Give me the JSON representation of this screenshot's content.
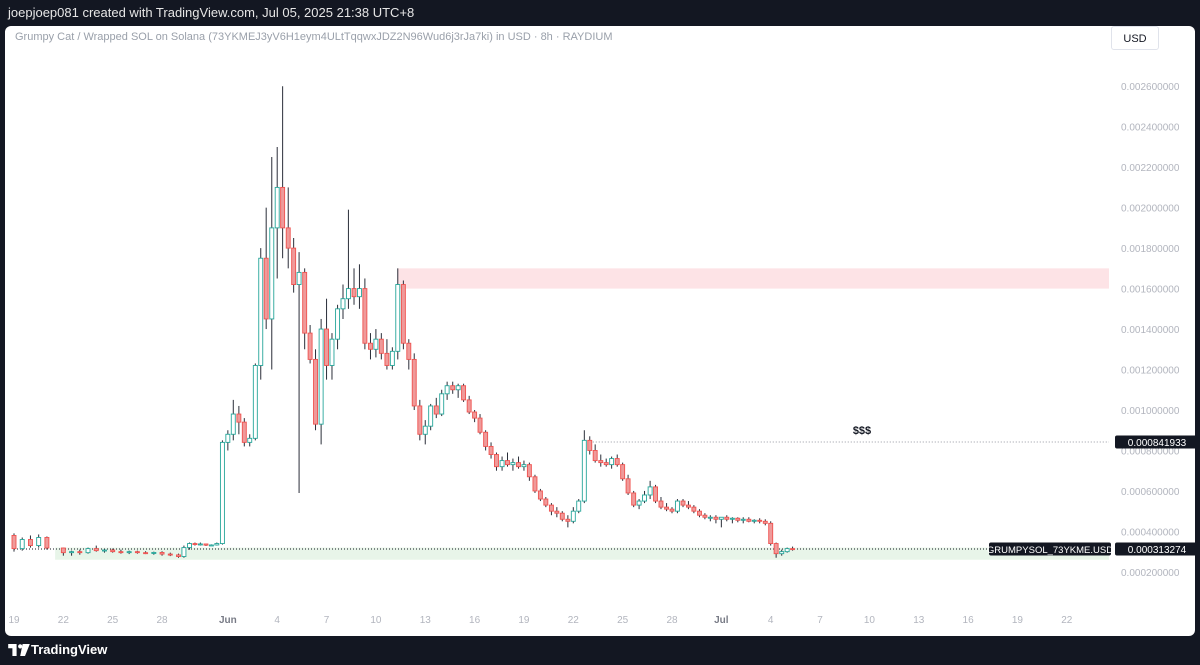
{
  "header": {
    "caption": "joepjoep081 created with TradingView.com, Jul 05, 2025 21:38 UTC+8"
  },
  "footer": {
    "brand": "TradingView"
  },
  "toolbar": {
    "currency_label": "USD"
  },
  "colors": {
    "up": "#26a69a",
    "down": "#ef5350",
    "upFill": "#ffffff",
    "downFill": "#ef9a9a",
    "supplyZone": "#fde3e6",
    "demandZone": "#e8f5e9",
    "axisText": "#b2b5be",
    "grid": "#f0f3fa"
  },
  "chart_data": {
    "type": "candlestick",
    "title": "Grumpy Cat / Wrapped SOL on Solana (73YKMEJ3yV6H1eym4ULtTqqwxJDZ2N96Wud6j3rJa7ki) in USD · 8h · RAYDIUM",
    "interval": "8h",
    "exchange": "RAYDIUM",
    "y_axis": {
      "min": 0.00015,
      "max": 0.0027,
      "ticks": [
        "0.000200000",
        "0.000400000",
        "0.000600000",
        "0.000800000",
        "0.001000000",
        "0.001200000",
        "0.001400000",
        "0.001600000",
        "0.001800000",
        "0.002000000",
        "0.002200000",
        "0.002400000",
        "0.002600000"
      ]
    },
    "x_axis": {
      "ticks": [
        {
          "label": "19",
          "day": 0
        },
        {
          "label": "22",
          "day": 3
        },
        {
          "label": "25",
          "day": 6
        },
        {
          "label": "28",
          "day": 9
        },
        {
          "label": "Jun",
          "day": 13,
          "bold": true
        },
        {
          "label": "4",
          "day": 16
        },
        {
          "label": "7",
          "day": 19
        },
        {
          "label": "10",
          "day": 22
        },
        {
          "label": "13",
          "day": 25
        },
        {
          "label": "16",
          "day": 28
        },
        {
          "label": "19",
          "day": 31
        },
        {
          "label": "22",
          "day": 34
        },
        {
          "label": "25",
          "day": 37
        },
        {
          "label": "28",
          "day": 40
        },
        {
          "label": "Jul",
          "day": 43,
          "bold": true
        },
        {
          "label": "4",
          "day": 46
        },
        {
          "label": "7",
          "day": 49
        },
        {
          "label": "10",
          "day": 52
        },
        {
          "label": "13",
          "day": 55
        },
        {
          "label": "16",
          "day": 58
        },
        {
          "label": "19",
          "day": 61
        },
        {
          "label": "22",
          "day": 64
        }
      ]
    },
    "candles": [
      {
        "d": 0,
        "o": 0.00038,
        "h": 0.00039,
        "l": 0.0003,
        "c": 0.000315
      },
      {
        "d": 0.5,
        "o": 0.000315,
        "h": 0.00037,
        "l": 0.000305,
        "c": 0.00036
      },
      {
        "d": 1,
        "o": 0.00036,
        "h": 0.00038,
        "l": 0.00032,
        "c": 0.00033
      },
      {
        "d": 1.5,
        "o": 0.00033,
        "h": 0.000385,
        "l": 0.00032,
        "c": 0.00037
      },
      {
        "d": 2,
        "o": 0.00037,
        "h": 0.000375,
        "l": 0.00031,
        "c": 0.000318
      },
      {
        "d": 3,
        "o": 0.000318,
        "h": 0.00032,
        "l": 0.00028,
        "c": 0.000295
      },
      {
        "d": 3.5,
        "o": 0.000295,
        "h": 0.000305,
        "l": 0.00028,
        "c": 0.0003
      },
      {
        "d": 4,
        "o": 0.0003,
        "h": 0.00031,
        "l": 0.000285,
        "c": 0.000295
      },
      {
        "d": 4.5,
        "o": 0.000295,
        "h": 0.00032,
        "l": 0.00029,
        "c": 0.000315
      },
      {
        "d": 5,
        "o": 0.000315,
        "h": 0.00033,
        "l": 0.0003,
        "c": 0.000305
      },
      {
        "d": 5.5,
        "o": 0.000305,
        "h": 0.000312,
        "l": 0.000295,
        "c": 0.000308
      },
      {
        "d": 6,
        "o": 0.000308,
        "h": 0.000315,
        "l": 0.000295,
        "c": 0.0003
      },
      {
        "d": 6.5,
        "o": 0.0003,
        "h": 0.00031,
        "l": 0.00029,
        "c": 0.000296
      },
      {
        "d": 7,
        "o": 0.000296,
        "h": 0.000305,
        "l": 0.000288,
        "c": 0.0003
      },
      {
        "d": 7.5,
        "o": 0.0003,
        "h": 0.000305,
        "l": 0.00029,
        "c": 0.000295
      },
      {
        "d": 8,
        "o": 0.000295,
        "h": 0.000302,
        "l": 0.000288,
        "c": 0.000292
      },
      {
        "d": 8.5,
        "o": 0.000292,
        "h": 0.0003,
        "l": 0.000285,
        "c": 0.000296
      },
      {
        "d": 9,
        "o": 0.000296,
        "h": 0.000302,
        "l": 0.00028,
        "c": 0.000288
      },
      {
        "d": 9.5,
        "o": 0.000288,
        "h": 0.000295,
        "l": 0.000278,
        "c": 0.000284
      },
      {
        "d": 10,
        "o": 0.000284,
        "h": 0.00029,
        "l": 0.00027,
        "c": 0.000276
      },
      {
        "d": 10.33,
        "o": 0.000276,
        "h": 0.00033,
        "l": 0.00027,
        "c": 0.00032
      },
      {
        "d": 10.67,
        "o": 0.00032,
        "h": 0.000345,
        "l": 0.00031,
        "c": 0.00034
      },
      {
        "d": 11,
        "o": 0.00034,
        "h": 0.000345,
        "l": 0.00033,
        "c": 0.000335
      },
      {
        "d": 11.33,
        "o": 0.000335,
        "h": 0.000345,
        "l": 0.00033,
        "c": 0.000338
      },
      {
        "d": 11.67,
        "o": 0.000338,
        "h": 0.00034,
        "l": 0.000328,
        "c": 0.000332
      },
      {
        "d": 12,
        "o": 0.000332,
        "h": 0.000336,
        "l": 0.000328,
        "c": 0.000333
      },
      {
        "d": 12.33,
        "o": 0.000333,
        "h": 0.000345,
        "l": 0.00033,
        "c": 0.00034
      },
      {
        "d": 12.67,
        "o": 0.00034,
        "h": 0.00085,
        "l": 0.000335,
        "c": 0.00084
      },
      {
        "d": 13,
        "o": 0.00084,
        "h": 0.0009,
        "l": 0.0008,
        "c": 0.00088
      },
      {
        "d": 13.33,
        "o": 0.00088,
        "h": 0.00105,
        "l": 0.00085,
        "c": 0.00098
      },
      {
        "d": 13.67,
        "o": 0.00098,
        "h": 0.00102,
        "l": 0.00088,
        "c": 0.00094
      },
      {
        "d": 14,
        "o": 0.00094,
        "h": 0.00096,
        "l": 0.00082,
        "c": 0.00084
      },
      {
        "d": 14.33,
        "o": 0.00084,
        "h": 0.00088,
        "l": 0.00082,
        "c": 0.00086
      },
      {
        "d": 14.67,
        "o": 0.00086,
        "h": 0.00123,
        "l": 0.00085,
        "c": 0.00122
      },
      {
        "d": 15,
        "o": 0.00122,
        "h": 0.0018,
        "l": 0.00115,
        "c": 0.00175
      },
      {
        "d": 15.33,
        "o": 0.00175,
        "h": 0.002,
        "l": 0.0014,
        "c": 0.00145
      },
      {
        "d": 15.67,
        "o": 0.00145,
        "h": 0.00225,
        "l": 0.0012,
        "c": 0.0019
      },
      {
        "d": 16,
        "o": 0.0019,
        "h": 0.0023,
        "l": 0.00165,
        "c": 0.0021
      },
      {
        "d": 16.33,
        "o": 0.0021,
        "h": 0.0026,
        "l": 0.00175,
        "c": 0.0019
      },
      {
        "d": 16.67,
        "o": 0.0019,
        "h": 0.0021,
        "l": 0.0017,
        "c": 0.0018
      },
      {
        "d": 17,
        "o": 0.0018,
        "h": 0.00185,
        "l": 0.00158,
        "c": 0.00162
      },
      {
        "d": 17.33,
        "o": 0.00162,
        "h": 0.00178,
        "l": 0.00059,
        "c": 0.00168
      },
      {
        "d": 17.67,
        "o": 0.00168,
        "h": 0.0017,
        "l": 0.0013,
        "c": 0.00138
      },
      {
        "d": 18,
        "o": 0.00138,
        "h": 0.00142,
        "l": 0.00123,
        "c": 0.00125
      },
      {
        "d": 18.33,
        "o": 0.00125,
        "h": 0.0013,
        "l": 0.0009,
        "c": 0.00093
      },
      {
        "d": 18.67,
        "o": 0.00093,
        "h": 0.00145,
        "l": 0.00083,
        "c": 0.0014
      },
      {
        "d": 19,
        "o": 0.0014,
        "h": 0.00155,
        "l": 0.00115,
        "c": 0.00122
      },
      {
        "d": 19.33,
        "o": 0.00122,
        "h": 0.00138,
        "l": 0.00115,
        "c": 0.00135
      },
      {
        "d": 19.67,
        "o": 0.00135,
        "h": 0.00152,
        "l": 0.0013,
        "c": 0.0015
      },
      {
        "d": 20,
        "o": 0.0015,
        "h": 0.00162,
        "l": 0.00145,
        "c": 0.00155
      },
      {
        "d": 20.33,
        "o": 0.00155,
        "h": 0.00199,
        "l": 0.0015,
        "c": 0.0016
      },
      {
        "d": 20.67,
        "o": 0.0016,
        "h": 0.0017,
        "l": 0.00152,
        "c": 0.00156
      },
      {
        "d": 21,
        "o": 0.00156,
        "h": 0.00172,
        "l": 0.0015,
        "c": 0.0016
      },
      {
        "d": 21.33,
        "o": 0.0016,
        "h": 0.00165,
        "l": 0.0013,
        "c": 0.00133
      },
      {
        "d": 21.67,
        "o": 0.00133,
        "h": 0.00138,
        "l": 0.00125,
        "c": 0.0013
      },
      {
        "d": 22,
        "o": 0.0013,
        "h": 0.0014,
        "l": 0.00126,
        "c": 0.00135
      },
      {
        "d": 22.33,
        "o": 0.00135,
        "h": 0.00138,
        "l": 0.00125,
        "c": 0.00128
      },
      {
        "d": 22.67,
        "o": 0.00128,
        "h": 0.00135,
        "l": 0.0012,
        "c": 0.00122
      },
      {
        "d": 23,
        "o": 0.00122,
        "h": 0.00131,
        "l": 0.0012,
        "c": 0.00129
      },
      {
        "d": 23.33,
        "o": 0.00129,
        "h": 0.0017,
        "l": 0.00125,
        "c": 0.00162
      },
      {
        "d": 23.67,
        "o": 0.00162,
        "h": 0.00164,
        "l": 0.0013,
        "c": 0.00133
      },
      {
        "d": 24,
        "o": 0.00133,
        "h": 0.00135,
        "l": 0.0012,
        "c": 0.00125
      },
      {
        "d": 24.33,
        "o": 0.00125,
        "h": 0.00128,
        "l": 0.001,
        "c": 0.00102
      },
      {
        "d": 24.67,
        "o": 0.00102,
        "h": 0.00105,
        "l": 0.00085,
        "c": 0.00088
      },
      {
        "d": 25,
        "o": 0.00088,
        "h": 0.00095,
        "l": 0.00083,
        "c": 0.00092
      },
      {
        "d": 25.33,
        "o": 0.00092,
        "h": 0.00103,
        "l": 0.0009,
        "c": 0.00102
      },
      {
        "d": 25.67,
        "o": 0.00102,
        "h": 0.00106,
        "l": 0.00096,
        "c": 0.00098
      },
      {
        "d": 26,
        "o": 0.00098,
        "h": 0.0011,
        "l": 0.00097,
        "c": 0.00108
      },
      {
        "d": 26.33,
        "o": 0.00108,
        "h": 0.00114,
        "l": 0.00105,
        "c": 0.00112
      },
      {
        "d": 26.67,
        "o": 0.00112,
        "h": 0.00114,
        "l": 0.00108,
        "c": 0.0011
      },
      {
        "d": 27,
        "o": 0.0011,
        "h": 0.00113,
        "l": 0.00106,
        "c": 0.00112
      },
      {
        "d": 27.33,
        "o": 0.00112,
        "h": 0.00113,
        "l": 0.00104,
        "c": 0.00105
      },
      {
        "d": 27.67,
        "o": 0.00105,
        "h": 0.00107,
        "l": 0.00098,
        "c": 0.00099
      },
      {
        "d": 28,
        "o": 0.00099,
        "h": 0.001,
        "l": 0.00094,
        "c": 0.00096
      },
      {
        "d": 28.33,
        "o": 0.00096,
        "h": 0.00098,
        "l": 0.00088,
        "c": 0.00089
      },
      {
        "d": 28.67,
        "o": 0.00089,
        "h": 0.0009,
        "l": 0.0008,
        "c": 0.00082
      },
      {
        "d": 29,
        "o": 0.00082,
        "h": 0.00084,
        "l": 0.00076,
        "c": 0.00078
      },
      {
        "d": 29.33,
        "o": 0.00078,
        "h": 0.00079,
        "l": 0.0007,
        "c": 0.00072
      },
      {
        "d": 29.67,
        "o": 0.00072,
        "h": 0.00077,
        "l": 0.0007,
        "c": 0.00075
      },
      {
        "d": 30,
        "o": 0.00075,
        "h": 0.00079,
        "l": 0.00072,
        "c": 0.00073
      },
      {
        "d": 30.33,
        "o": 0.00073,
        "h": 0.00076,
        "l": 0.0007,
        "c": 0.00074
      },
      {
        "d": 30.67,
        "o": 0.00074,
        "h": 0.00077,
        "l": 0.00071,
        "c": 0.00072
      },
      {
        "d": 31,
        "o": 0.00072,
        "h": 0.00075,
        "l": 0.0007,
        "c": 0.00073
      },
      {
        "d": 31.33,
        "o": 0.00073,
        "h": 0.00074,
        "l": 0.00065,
        "c": 0.00067
      },
      {
        "d": 31.67,
        "o": 0.00067,
        "h": 0.00068,
        "l": 0.00059,
        "c": 0.0006
      },
      {
        "d": 32,
        "o": 0.0006,
        "h": 0.00061,
        "l": 0.00055,
        "c": 0.00056
      },
      {
        "d": 32.33,
        "o": 0.00056,
        "h": 0.00057,
        "l": 0.00052,
        "c": 0.00053
      },
      {
        "d": 32.67,
        "o": 0.00053,
        "h": 0.00054,
        "l": 0.00048,
        "c": 0.0005
      },
      {
        "d": 33,
        "o": 0.0005,
        "h": 0.00052,
        "l": 0.00047,
        "c": 0.00049
      },
      {
        "d": 33.33,
        "o": 0.00049,
        "h": 0.0005,
        "l": 0.00045,
        "c": 0.00046
      },
      {
        "d": 33.67,
        "o": 0.00046,
        "h": 0.00048,
        "l": 0.00042,
        "c": 0.00045
      },
      {
        "d": 34,
        "o": 0.00045,
        "h": 0.00052,
        "l": 0.00044,
        "c": 0.0005
      },
      {
        "d": 34.33,
        "o": 0.0005,
        "h": 0.00056,
        "l": 0.00049,
        "c": 0.00055
      },
      {
        "d": 34.67,
        "o": 0.00055,
        "h": 0.0009,
        "l": 0.00054,
        "c": 0.00085
      },
      {
        "d": 35,
        "o": 0.00085,
        "h": 0.00087,
        "l": 0.00078,
        "c": 0.0008
      },
      {
        "d": 35.33,
        "o": 0.0008,
        "h": 0.00083,
        "l": 0.00074,
        "c": 0.00075
      },
      {
        "d": 35.67,
        "o": 0.00075,
        "h": 0.00078,
        "l": 0.00072,
        "c": 0.00074
      },
      {
        "d": 36,
        "o": 0.00074,
        "h": 0.00076,
        "l": 0.00072,
        "c": 0.00073
      },
      {
        "d": 36.33,
        "o": 0.00073,
        "h": 0.00077,
        "l": 0.00071,
        "c": 0.00076
      },
      {
        "d": 36.67,
        "o": 0.00076,
        "h": 0.00078,
        "l": 0.00072,
        "c": 0.00073
      },
      {
        "d": 37,
        "o": 0.00073,
        "h": 0.00074,
        "l": 0.00065,
        "c": 0.00066
      },
      {
        "d": 37.33,
        "o": 0.00066,
        "h": 0.00068,
        "l": 0.00058,
        "c": 0.00059
      },
      {
        "d": 37.67,
        "o": 0.00059,
        "h": 0.0006,
        "l": 0.00052,
        "c": 0.00053
      },
      {
        "d": 38,
        "o": 0.00053,
        "h": 0.00056,
        "l": 0.00051,
        "c": 0.00055
      },
      {
        "d": 38.33,
        "o": 0.00055,
        "h": 0.0006,
        "l": 0.00054,
        "c": 0.00058
      },
      {
        "d": 38.67,
        "o": 0.00058,
        "h": 0.00065,
        "l": 0.00056,
        "c": 0.00062
      },
      {
        "d": 39,
        "o": 0.00062,
        "h": 0.00063,
        "l": 0.00054,
        "c": 0.00055
      },
      {
        "d": 39.33,
        "o": 0.00055,
        "h": 0.00057,
        "l": 0.00051,
        "c": 0.00052
      },
      {
        "d": 39.67,
        "o": 0.00052,
        "h": 0.00054,
        "l": 0.0005,
        "c": 0.00051
      },
      {
        "d": 40,
        "o": 0.00051,
        "h": 0.00052,
        "l": 0.00049,
        "c": 0.0005
      },
      {
        "d": 40.33,
        "o": 0.0005,
        "h": 0.00056,
        "l": 0.00049,
        "c": 0.00055
      },
      {
        "d": 40.67,
        "o": 0.00055,
        "h": 0.00056,
        "l": 0.00052,
        "c": 0.00053
      },
      {
        "d": 41,
        "o": 0.00053,
        "h": 0.00055,
        "l": 0.00051,
        "c": 0.00052
      },
      {
        "d": 41.33,
        "o": 0.00052,
        "h": 0.00053,
        "l": 0.00049,
        "c": 0.0005
      },
      {
        "d": 41.67,
        "o": 0.0005,
        "h": 0.00051,
        "l": 0.00047,
        "c": 0.00048
      },
      {
        "d": 42,
        "o": 0.00048,
        "h": 0.00049,
        "l": 0.00046,
        "c": 0.00047
      },
      {
        "d": 42.33,
        "o": 0.00047,
        "h": 0.00048,
        "l": 0.00045,
        "c": 0.00047
      },
      {
        "d": 42.67,
        "o": 0.00047,
        "h": 0.00048,
        "l": 0.00044,
        "c": 0.00046
      },
      {
        "d": 43,
        "o": 0.00046,
        "h": 0.00047,
        "l": 0.00042,
        "c": 0.00047
      },
      {
        "d": 43.33,
        "o": 0.00047,
        "h": 0.00048,
        "l": 0.00045,
        "c": 0.00046
      },
      {
        "d": 43.67,
        "o": 0.00046,
        "h": 0.00047,
        "l": 0.00044,
        "c": 0.000465
      },
      {
        "d": 44,
        "o": 0.000465,
        "h": 0.00047,
        "l": 0.000445,
        "c": 0.000455
      },
      {
        "d": 44.33,
        "o": 0.000455,
        "h": 0.00047,
        "l": 0.00044,
        "c": 0.00046
      },
      {
        "d": 44.67,
        "o": 0.00046,
        "h": 0.00047,
        "l": 0.000445,
        "c": 0.00045
      },
      {
        "d": 45,
        "o": 0.00045,
        "h": 0.00046,
        "l": 0.00044,
        "c": 0.000455
      },
      {
        "d": 45.33,
        "o": 0.000455,
        "h": 0.000465,
        "l": 0.00044,
        "c": 0.00045
      },
      {
        "d": 45.67,
        "o": 0.00045,
        "h": 0.00046,
        "l": 0.00043,
        "c": 0.00044
      },
      {
        "d": 46,
        "o": 0.00044,
        "h": 0.00045,
        "l": 0.00033,
        "c": 0.00034
      },
      {
        "d": 46.33,
        "o": 0.00034,
        "h": 0.000345,
        "l": 0.00027,
        "c": 0.00029
      },
      {
        "d": 46.67,
        "o": 0.00029,
        "h": 0.00031,
        "l": 0.00028,
        "c": 0.0003
      },
      {
        "d": 47,
        "o": 0.0003,
        "h": 0.00032,
        "l": 0.000295,
        "c": 0.000315
      },
      {
        "d": 47.33,
        "o": 0.000315,
        "h": 0.000325,
        "l": 0.000305,
        "c": 0.000313
      }
    ],
    "annotations": [
      {
        "kind": "zone",
        "role": "supply",
        "x_start_day": 23.3,
        "x_end": "right-edge",
        "y_low": 0.0016,
        "y_high": 0.0017
      },
      {
        "kind": "zone",
        "role": "demand",
        "x_start_day": 2.5,
        "x_end": "right-edge",
        "y_low": 0.00026,
        "y_high": 0.00032
      },
      {
        "kind": "hline",
        "role": "liquidity",
        "x_start_day": 35.0,
        "y": 0.000841933,
        "dotted": true,
        "label": "$$$"
      },
      {
        "kind": "hline",
        "role": "last-price",
        "x_start_day": 0,
        "y": 0.000313274,
        "dotted": true
      }
    ],
    "price_labels": [
      {
        "kind": "level",
        "text": "0.000841933",
        "y": 0.000841933
      },
      {
        "kind": "last",
        "symbol": "GRUMPYSOL_73YKME.USD",
        "text": "0.000313274",
        "y": 0.000313274
      }
    ]
  }
}
